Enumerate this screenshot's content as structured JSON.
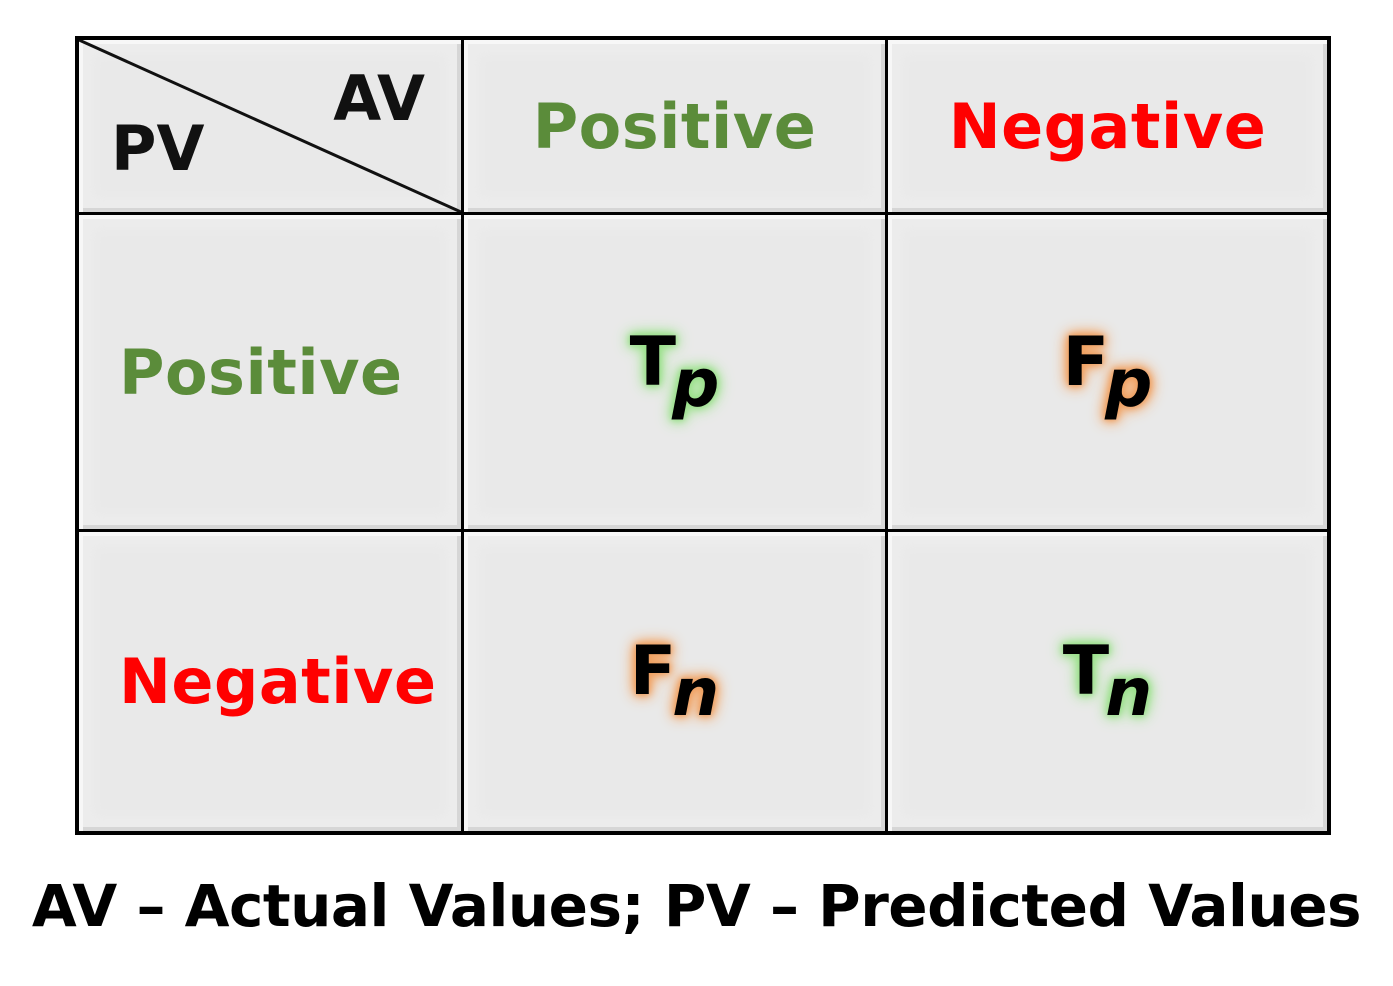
{
  "corner": {
    "column_axis": "AV",
    "row_axis": "PV"
  },
  "columns": {
    "positive": "Positive",
    "negative": "Negative"
  },
  "rows": {
    "positive": "Positive",
    "negative": "Negative"
  },
  "cells": {
    "tp": {
      "main": "T",
      "sub": "p"
    },
    "fp": {
      "main": "F",
      "sub": "p"
    },
    "fn": {
      "main": "F",
      "sub": "n"
    },
    "tn": {
      "main": "T",
      "sub": "n"
    }
  },
  "caption": "AV – Actual Values; PV – Predicted Values",
  "colors": {
    "positive": "#5b8c3a",
    "negative": "#ff0000",
    "glow_true": "#9ae08a",
    "glow_false": "#f0a060",
    "cell_bg": "#ececec"
  }
}
